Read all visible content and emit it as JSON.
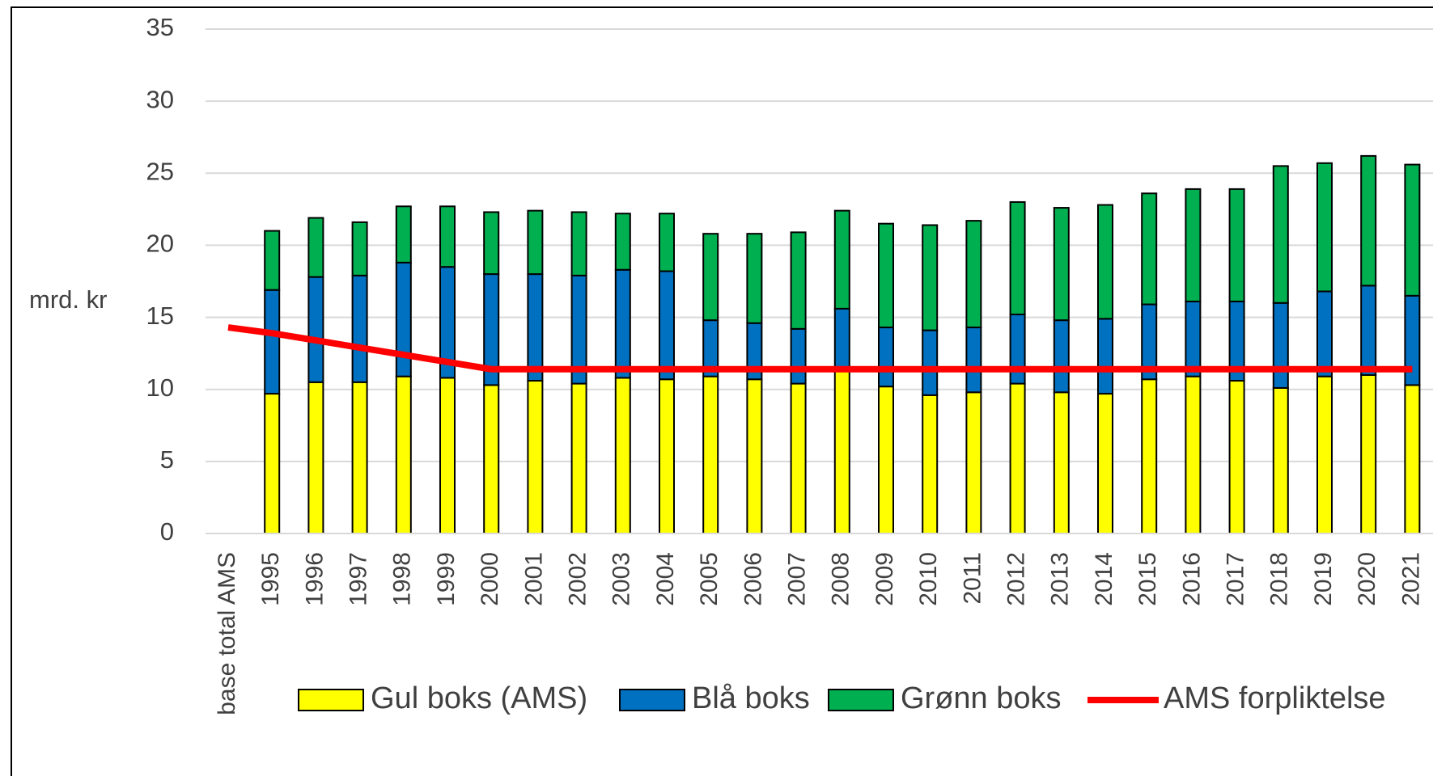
{
  "chart_data": {
    "type": "bar",
    "stacked": true,
    "y_label": "mrd. kr",
    "categories": [
      "base total AMS",
      "1995",
      "1996",
      "1997",
      "1998",
      "1999",
      "2000",
      "2001",
      "2002",
      "2003",
      "2004",
      "2005",
      "2006",
      "2007",
      "2008",
      "2009",
      "2010",
      "2011",
      "2012",
      "2013",
      "2014",
      "2015",
      "2016",
      "2017",
      "2018",
      "2019",
      "2020",
      "2021"
    ],
    "series": [
      {
        "name": "Gul boks (AMS)",
        "color": "#ffff00",
        "values": [
          null,
          9.7,
          10.5,
          10.5,
          10.9,
          10.8,
          10.3,
          10.6,
          10.4,
          10.8,
          10.7,
          10.9,
          10.7,
          10.4,
          11.3,
          10.2,
          9.6,
          9.8,
          10.4,
          9.8,
          9.7,
          10.7,
          10.9,
          10.6,
          10.1,
          10.9,
          11.0,
          10.3
        ]
      },
      {
        "name": "Blå boks",
        "color": "#0070c0",
        "values": [
          null,
          7.2,
          7.3,
          7.4,
          7.9,
          7.7,
          7.7,
          7.4,
          7.5,
          7.5,
          7.5,
          3.9,
          3.9,
          3.8,
          4.3,
          4.1,
          4.5,
          4.5,
          4.8,
          5.0,
          5.2,
          5.2,
          5.2,
          5.5,
          5.9,
          5.9,
          6.2,
          6.2
        ]
      },
      {
        "name": "Grønn boks",
        "color": "#00b050",
        "values": [
          null,
          4.1,
          4.1,
          3.7,
          3.9,
          4.2,
          4.3,
          4.4,
          4.4,
          3.9,
          4.0,
          6.0,
          6.2,
          6.7,
          6.8,
          7.2,
          7.3,
          7.4,
          7.8,
          7.8,
          7.9,
          7.7,
          7.8,
          7.8,
          9.5,
          8.9,
          9.0,
          9.1
        ]
      },
      {
        "name": "AMS forpliktelse",
        "color": "#ff0000",
        "type": "line",
        "values": [
          14.3,
          13.9,
          13.4,
          12.9,
          12.4,
          11.9,
          11.4,
          11.4,
          11.4,
          11.4,
          11.4,
          11.4,
          11.4,
          11.4,
          11.4,
          11.4,
          11.4,
          11.4,
          11.4,
          11.4,
          11.4,
          11.4,
          11.4,
          11.4,
          11.4,
          11.4,
          11.4,
          11.4
        ]
      }
    ],
    "ylim": [
      0,
      35
    ],
    "yticks": [
      0,
      5,
      10,
      15,
      20,
      25,
      30,
      35
    ],
    "grid": true,
    "legend": "bottom"
  }
}
